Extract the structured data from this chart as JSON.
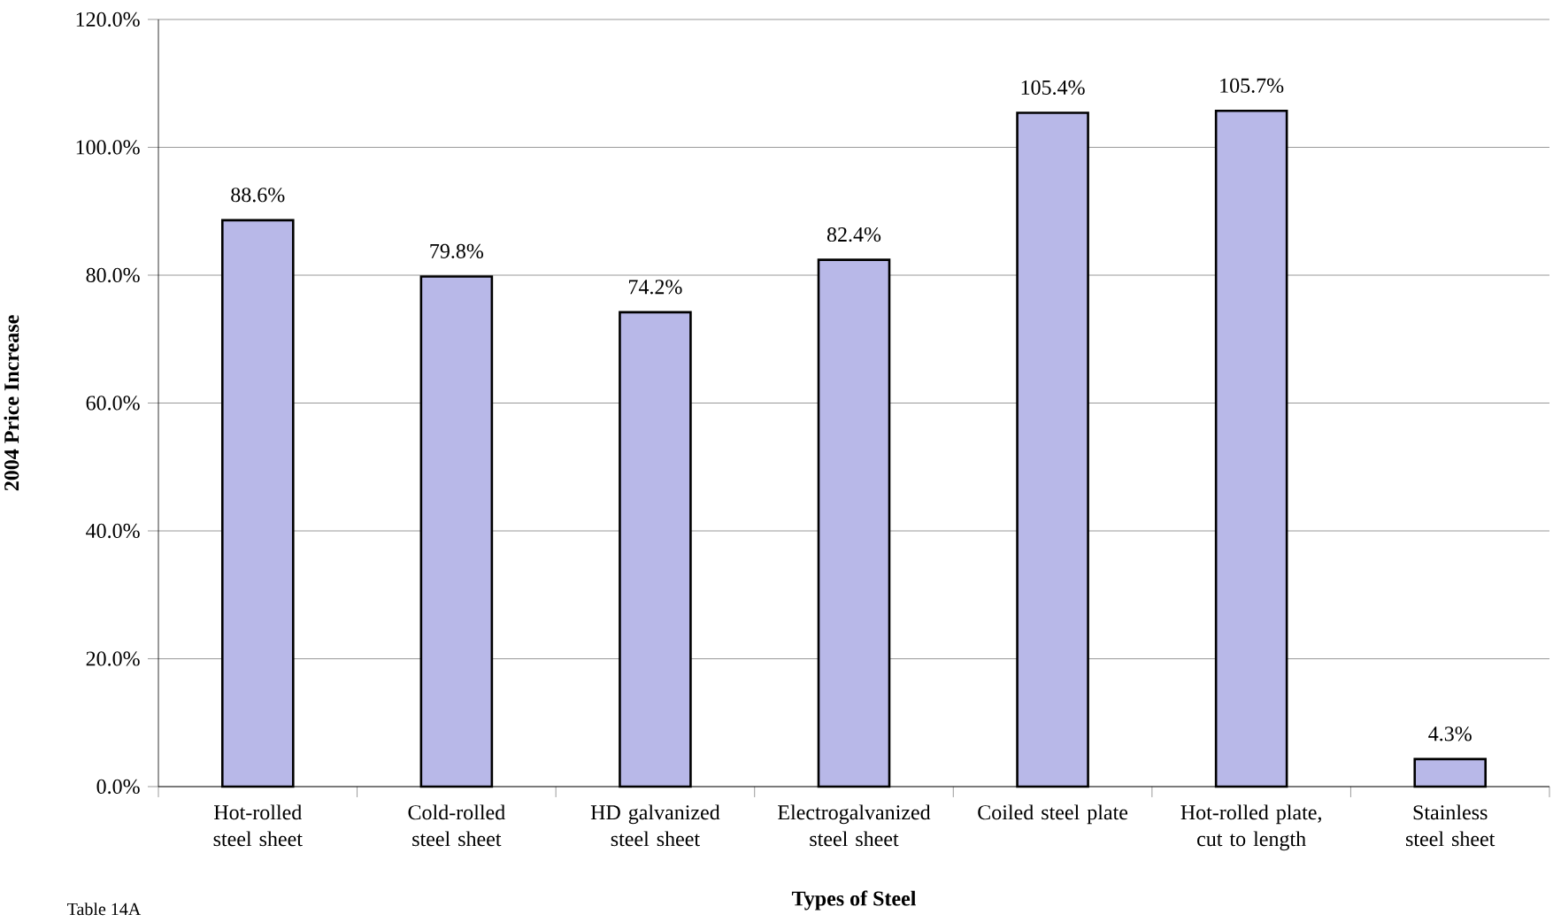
{
  "chart_data": {
    "type": "bar",
    "xlabel": "Types of Steel",
    "ylabel": "2004 Price Increase",
    "categories": [
      "Hot-rolled steel sheet",
      "Cold-rolled steel sheet",
      "HD galvanized steel sheet",
      "Electrogalvanized steel sheet",
      "Coiled steel plate",
      "Hot-rolled plate, cut to length",
      "Stainless steel sheet"
    ],
    "values": [
      88.6,
      79.8,
      74.2,
      82.4,
      105.4,
      105.7,
      4.3
    ],
    "value_labels": [
      "88.6%",
      "79.8%",
      "74.2%",
      "82.4%",
      "105.4%",
      "105.7%",
      "4.3%"
    ],
    "color": "#b8b8e8",
    "ylim": [
      0,
      120
    ],
    "yticks": [
      {
        "value": 0,
        "label": "0.0%"
      },
      {
        "value": 20,
        "label": "20.0%"
      },
      {
        "value": 40,
        "label": "40.0%"
      },
      {
        "value": 60,
        "label": "60.0%"
      },
      {
        "value": 80,
        "label": "80.0%"
      },
      {
        "value": 100,
        "label": "100.0%"
      },
      {
        "value": 120,
        "label": "120.0%"
      }
    ],
    "grid": "y",
    "annotations": [
      "Table 14A"
    ]
  }
}
